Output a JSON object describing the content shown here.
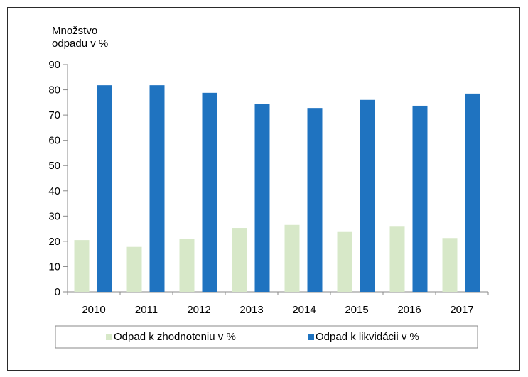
{
  "chart_data": {
    "type": "bar",
    "title": "",
    "xlabel": "",
    "ylabel_lines": [
      "Množstvo",
      "odpadu v %"
    ],
    "categories": [
      "2010",
      "2011",
      "2012",
      "2013",
      "2014",
      "2015",
      "2016",
      "2017"
    ],
    "series": [
      {
        "name": "Odpad k zhodnoteniu v %",
        "color": "#d7e8c8",
        "values": [
          20.5,
          17.8,
          21,
          25.3,
          26.5,
          23.7,
          25.8,
          21.3
        ]
      },
      {
        "name": "Odpad k likvidácii v %",
        "color": "#1f73c0",
        "values": [
          81.8,
          81.8,
          78.8,
          74.3,
          72.8,
          76,
          73.7,
          78.5
        ]
      }
    ],
    "ylim": [
      0,
      90
    ],
    "yticks": [
      0,
      10,
      20,
      30,
      40,
      50,
      60,
      70,
      80,
      90
    ],
    "grid": false,
    "legend_position": "bottom"
  }
}
